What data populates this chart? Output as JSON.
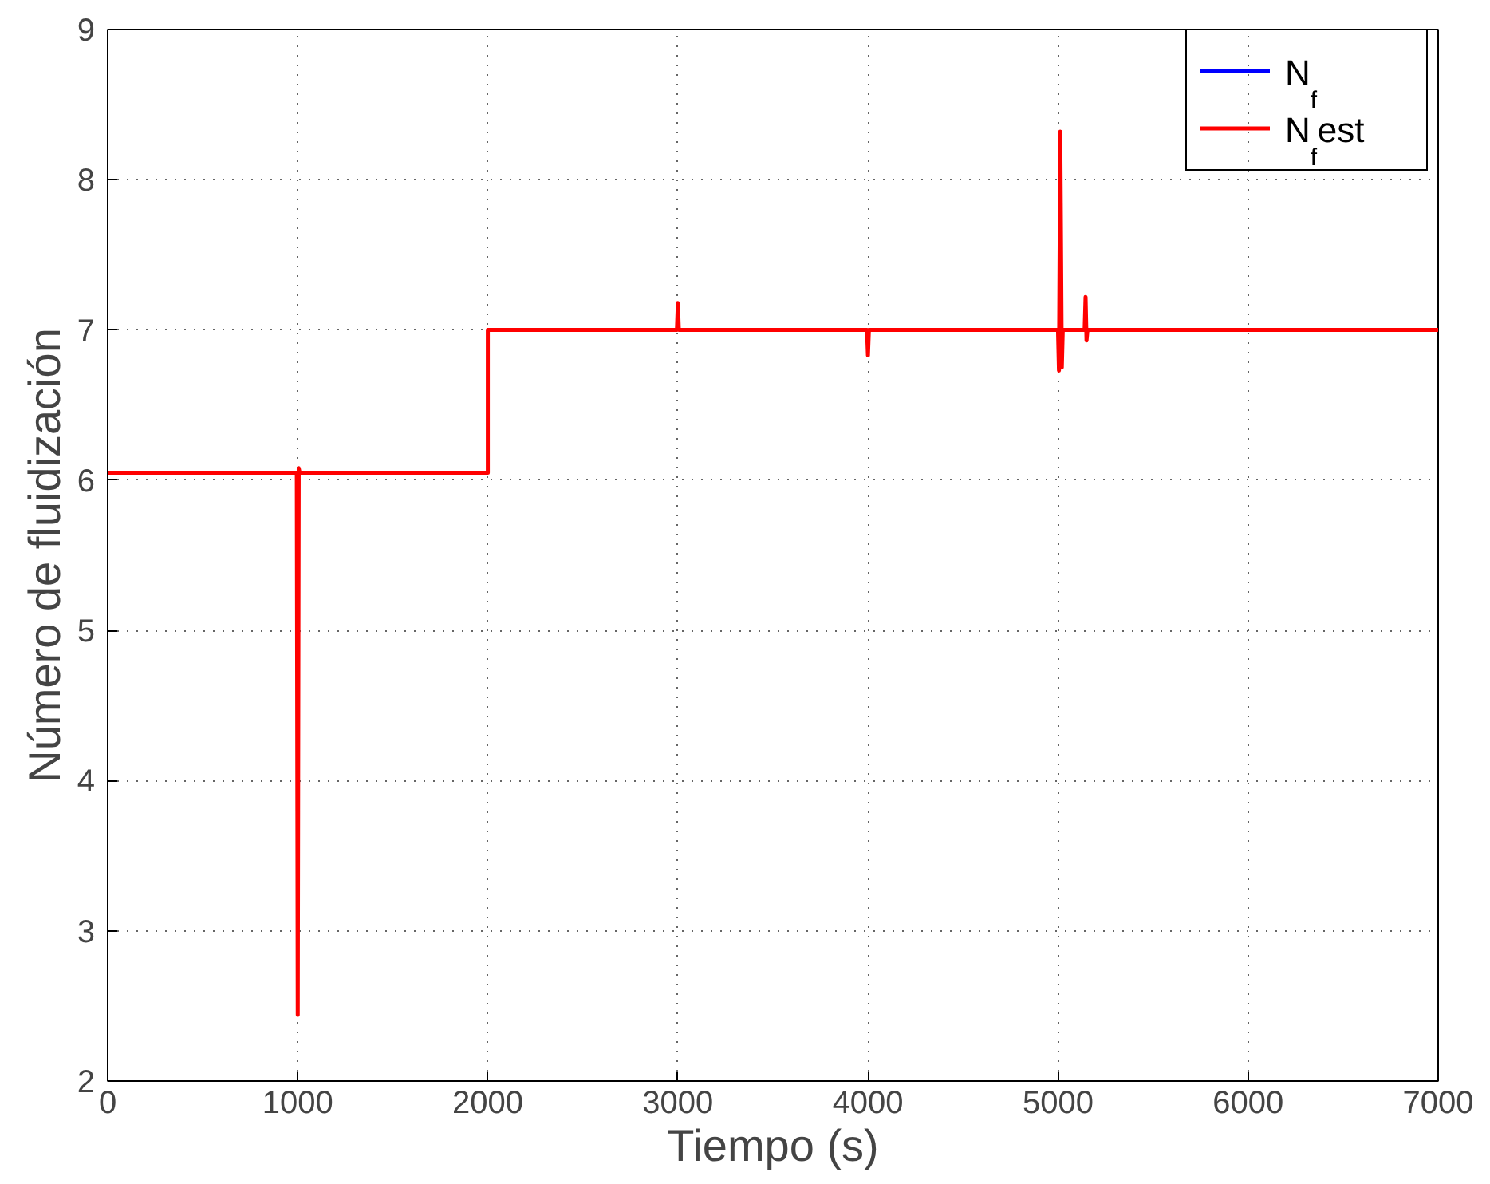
{
  "chart_data": {
    "type": "line",
    "xlabel": "Tiempo (s)",
    "ylabel": "Número de fluidización",
    "xlim": [
      0,
      7000
    ],
    "ylim": [
      2,
      9
    ],
    "xticks": [
      0,
      1000,
      2000,
      3000,
      4000,
      5000,
      6000,
      7000
    ],
    "yticks": [
      2,
      3,
      4,
      5,
      6,
      7,
      8,
      9
    ],
    "grid": true,
    "legend": "top right",
    "series": [
      {
        "name": "N$_{f}$",
        "color": "#0000ff"
      },
      {
        "name": "N$_{f}$est",
        "color": "#ff0000",
        "x": [
          0,
          995,
          1000,
          1005,
          1010,
          2000,
          2000,
          2995,
          3000,
          3005,
          3995,
          4000,
          4005,
          5000,
          5005,
          5012,
          5020,
          5025,
          5140,
          5145,
          5150,
          5155,
          7000
        ],
        "values": [
          6.05,
          6.05,
          2.44,
          6.08,
          6.05,
          6.05,
          7.0,
          7.0,
          7.18,
          7.0,
          7.0,
          6.83,
          7.0,
          7.0,
          6.73,
          8.32,
          6.75,
          7.0,
          7.0,
          7.22,
          6.93,
          7.0,
          7.0
        ]
      }
    ]
  }
}
